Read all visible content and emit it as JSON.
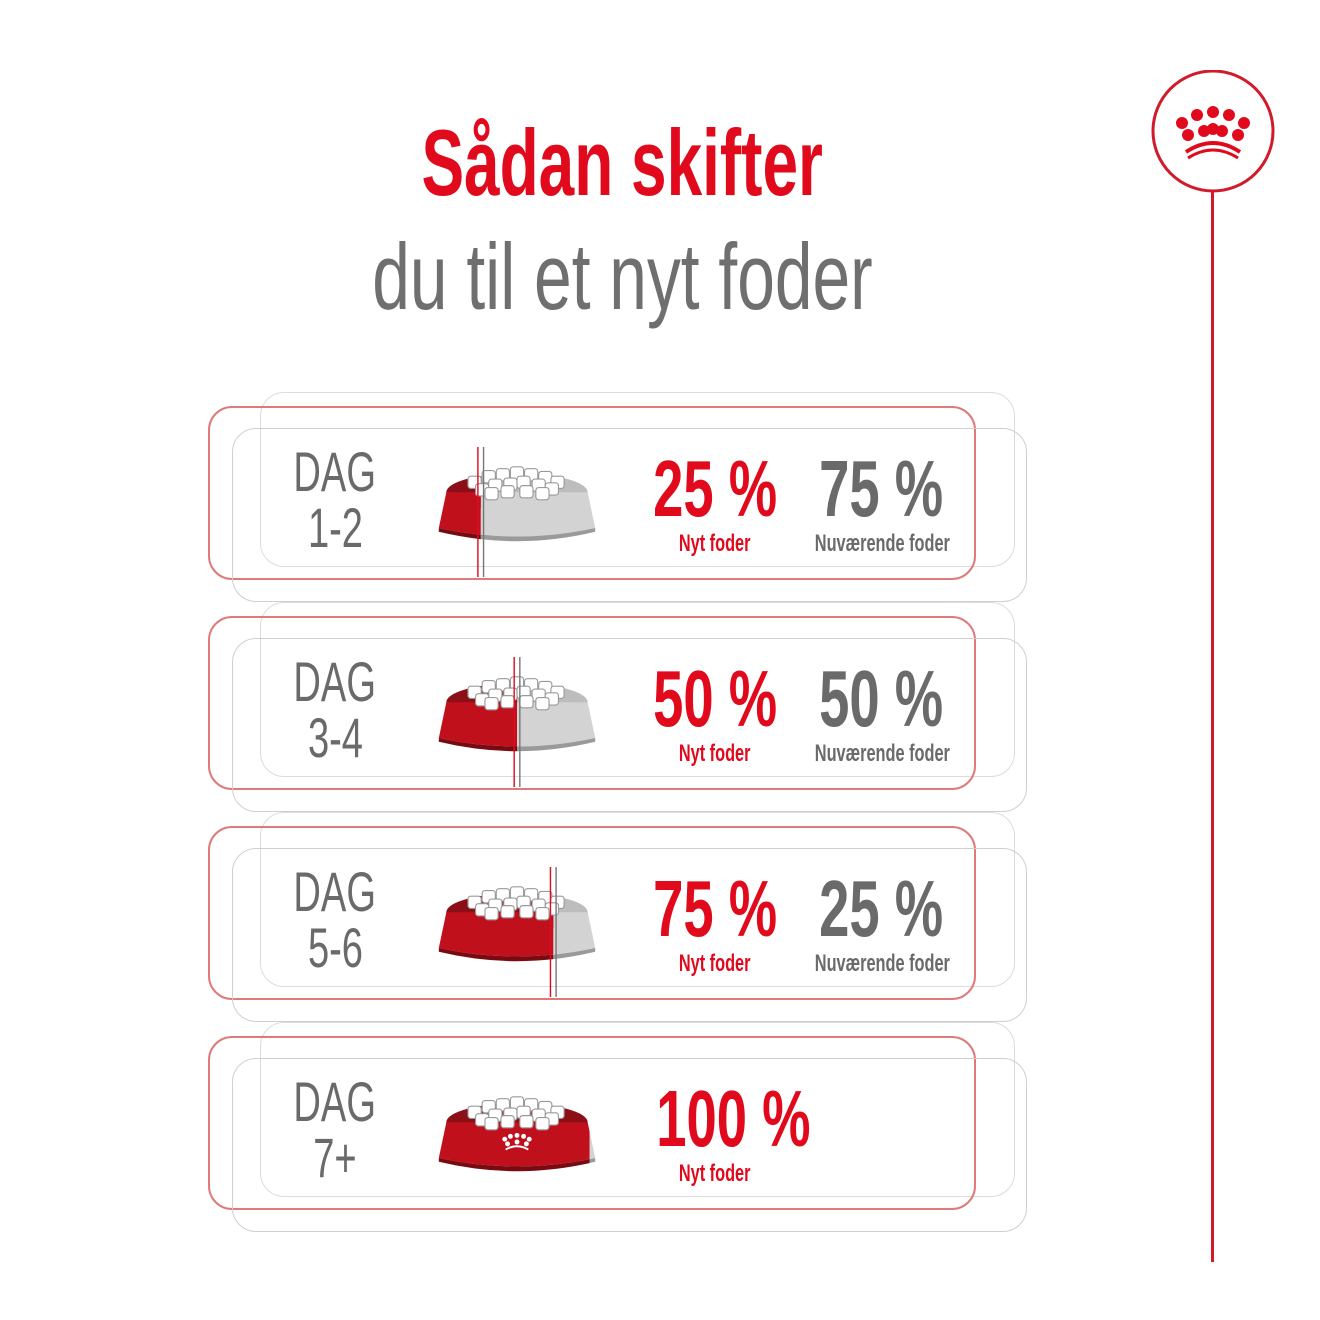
{
  "header": {
    "title": "Sådan skifter",
    "subtitle": "du til et nyt foder"
  },
  "logo": {
    "icon": "royal-crown-icon"
  },
  "colors": {
    "brand_red": "#e10a1d",
    "text_gray": "#6a6a6a"
  },
  "steps": [
    {
      "day_label": "DAG",
      "day_range": "1-2",
      "new_pct_text": "25 %",
      "new_label": "Nyt foder",
      "current_pct_text": "75 %",
      "current_label": "Nuværende foder",
      "new_fraction": 0.25
    },
    {
      "day_label": "DAG",
      "day_range": "3-4",
      "new_pct_text": "50 %",
      "new_label": "Nyt foder",
      "current_pct_text": "50 %",
      "current_label": "Nuværende foder",
      "new_fraction": 0.5
    },
    {
      "day_label": "DAG",
      "day_range": "5-6",
      "new_pct_text": "75 %",
      "new_label": "Nyt foder",
      "current_pct_text": "25 %",
      "current_label": "Nuværende foder",
      "new_fraction": 0.75
    },
    {
      "day_label": "DAG",
      "day_range": "7+",
      "new_pct_text": "100 %",
      "new_label": "Nyt foder",
      "new_fraction": 1.0
    }
  ]
}
